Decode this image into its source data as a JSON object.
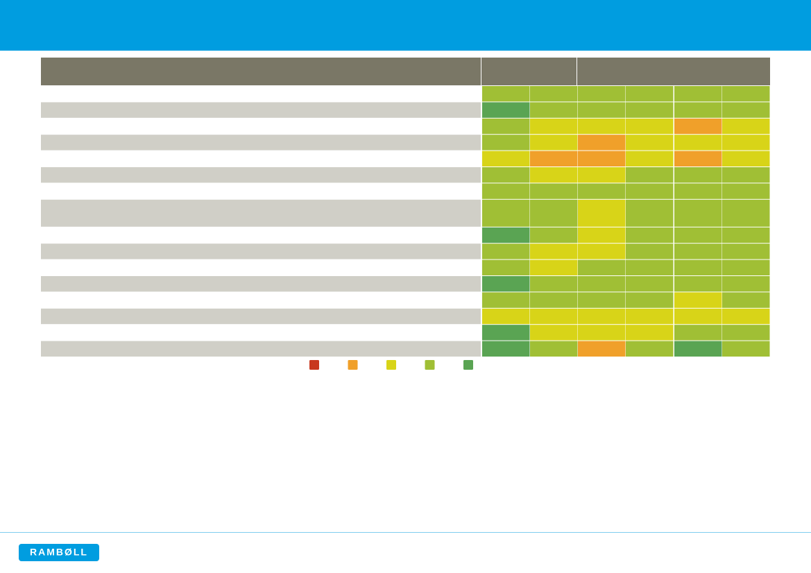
{
  "legend": {
    "colors": [
      "#c8381e",
      "#f0a02a",
      "#d8d418",
      "#a0bf35",
      "#5aa453"
    ]
  },
  "table": {
    "header_color": "#7a7766",
    "stripe_color": "#d0cfc7",
    "rows": [
      [
        "#a0bf35",
        "#a0bf35",
        "#a0bf35",
        "#a0bf35",
        "#a0bf35",
        "#a0bf35"
      ],
      [
        "#5aa453",
        "#a0bf35",
        "#a0bf35",
        "#a0bf35",
        "#a0bf35",
        "#a0bf35"
      ],
      [
        "#a0bf35",
        "#d8d418",
        "#d8d418",
        "#d8d418",
        "#f0a02a",
        "#d8d418"
      ],
      [
        "#a0bf35",
        "#d8d418",
        "#f0a02a",
        "#d8d418",
        "#d8d418",
        "#d8d418"
      ],
      [
        "#d8d418",
        "#f0a02a",
        "#f0a02a",
        "#d8d418",
        "#f0a02a",
        "#d8d418"
      ],
      [
        "#a0bf35",
        "#d8d418",
        "#d8d418",
        "#a0bf35",
        "#a0bf35",
        "#a0bf35"
      ],
      [
        "#a0bf35",
        "#a0bf35",
        "#a0bf35",
        "#a0bf35",
        "#a0bf35",
        "#a0bf35"
      ],
      [
        "#a0bf35",
        "#a0bf35",
        "#d8d418",
        "#a0bf35",
        "#a0bf35",
        "#a0bf35"
      ],
      [
        "#5aa453",
        "#a0bf35",
        "#d8d418",
        "#a0bf35",
        "#a0bf35",
        "#a0bf35"
      ],
      [
        "#a0bf35",
        "#d8d418",
        "#d8d418",
        "#a0bf35",
        "#a0bf35",
        "#a0bf35"
      ],
      [
        "#a0bf35",
        "#d8d418",
        "#a0bf35",
        "#a0bf35",
        "#a0bf35",
        "#a0bf35"
      ],
      [
        "#5aa453",
        "#a0bf35",
        "#a0bf35",
        "#a0bf35",
        "#a0bf35",
        "#a0bf35"
      ],
      [
        "#a0bf35",
        "#a0bf35",
        "#a0bf35",
        "#a0bf35",
        "#d8d418",
        "#a0bf35"
      ],
      [
        "#d8d418",
        "#d8d418",
        "#d8d418",
        "#d8d418",
        "#d8d418",
        "#d8d418"
      ],
      [
        "#5aa453",
        "#d8d418",
        "#d8d418",
        "#d8d418",
        "#a0bf35",
        "#a0bf35"
      ],
      [
        "#5aa453",
        "#a0bf35",
        "#f0a02a",
        "#a0bf35",
        "#5aa453",
        "#a0bf35"
      ]
    ]
  },
  "logo": {
    "text": "RAMBØLL"
  }
}
